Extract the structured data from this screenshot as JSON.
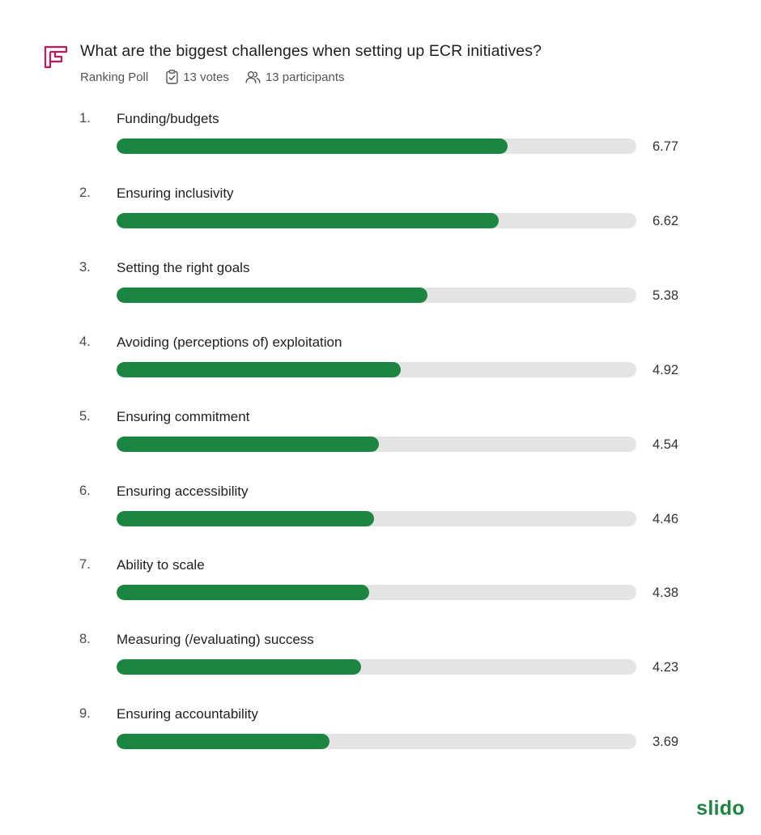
{
  "header": {
    "title": "What are the biggest challenges when setting up ECR initiatives?",
    "poll_type": "Ranking Poll",
    "votes": "13 votes",
    "participants": "13 participants"
  },
  "colors": {
    "bar_fill": "#1b8541",
    "bar_track": "#e4e4e4",
    "icon_accent": "#c2185b"
  },
  "icons": {
    "poll": "ranking-poll-icon",
    "votes": "clipboard-check-icon",
    "participants": "people-icon"
  },
  "chart_data": {
    "type": "bar",
    "orientation": "horizontal",
    "xlim": [
      0,
      9
    ],
    "categories": [
      "Funding/budgets",
      "Ensuring inclusivity",
      "Setting the right goals",
      "Avoiding (perceptions of) exploitation",
      "Ensuring commitment",
      "Ensuring accessibility",
      "Ability to scale",
      "Measuring (/evaluating) success",
      "Ensuring accountability"
    ],
    "ranks": [
      "1.",
      "2.",
      "3.",
      "4.",
      "5.",
      "6.",
      "7.",
      "8.",
      "9."
    ],
    "values": [
      6.77,
      6.62,
      5.38,
      4.92,
      4.54,
      4.46,
      4.38,
      4.23,
      3.69
    ],
    "value_labels": [
      "6.77",
      "6.62",
      "5.38",
      "4.92",
      "4.54",
      "4.46",
      "4.38",
      "4.23",
      "3.69"
    ]
  },
  "brand": {
    "name": "slido"
  }
}
